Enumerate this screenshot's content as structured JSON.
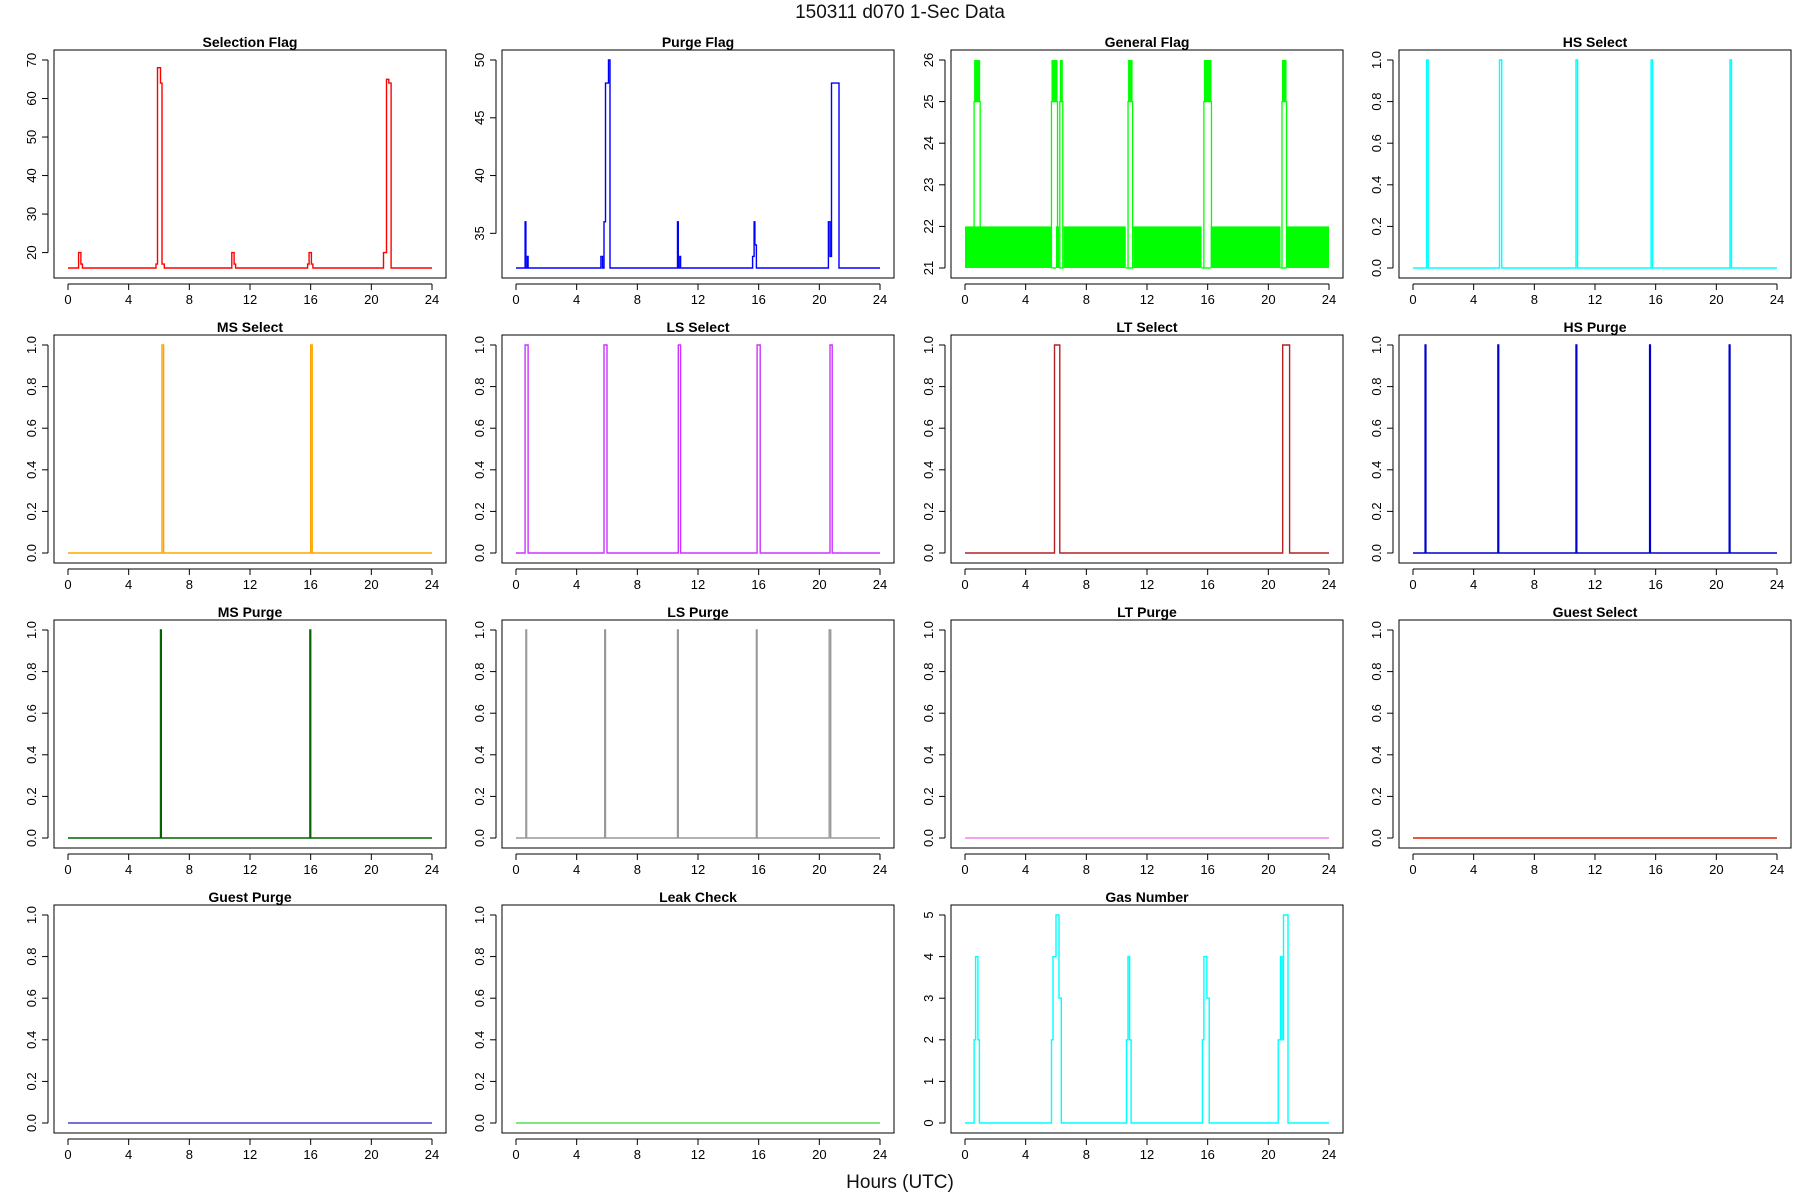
{
  "figure": {
    "title": "150311   d070   1-Sec Data",
    "xlabel": "Hours (UTC)"
  },
  "chart_data": [
    {
      "type": "line",
      "title": "Selection Flag",
      "color": "#ff0000",
      "xlim": [
        0,
        24
      ],
      "ylim": [
        16,
        70
      ],
      "xticks": [
        0,
        4,
        8,
        12,
        16,
        20,
        24
      ],
      "yticks": [
        20,
        30,
        40,
        50,
        60,
        70
      ],
      "series": [
        {
          "name": "Selection Flag",
          "x": [
            0,
            0.7,
            0.7,
            0.85,
            0.85,
            0.95,
            0.95,
            5.8,
            5.8,
            5.9,
            5.9,
            6.1,
            6.1,
            6.2,
            6.2,
            6.35,
            6.35,
            10.8,
            10.8,
            10.95,
            10.95,
            11.05,
            11.05,
            15.8,
            15.8,
            15.9,
            15.9,
            16.05,
            16.05,
            16.15,
            16.15,
            20.8,
            20.8,
            21.0,
            21.0,
            21.15,
            21.15,
            21.3,
            21.3,
            24
          ],
          "y": [
            16,
            16,
            20,
            20,
            17,
            17,
            16,
            16,
            17,
            17,
            68,
            68,
            64,
            64,
            17,
            17,
            16,
            16,
            20,
            20,
            17,
            17,
            16,
            16,
            17,
            17,
            20,
            20,
            17,
            17,
            16,
            16,
            20,
            20,
            65,
            65,
            64,
            64,
            16,
            16
          ]
        }
      ]
    },
    {
      "type": "line",
      "title": "Purge Flag",
      "color": "#0000ff",
      "xlim": [
        0,
        24
      ],
      "ylim": [
        32,
        50
      ],
      "xticks": [
        0,
        4,
        8,
        12,
        16,
        20,
        24
      ],
      "yticks": [
        35,
        40,
        45,
        50
      ],
      "series": [
        {
          "name": "Purge Flag",
          "x": [
            0,
            0.6,
            0.6,
            0.65,
            0.65,
            0.75,
            0.75,
            0.8,
            0.8,
            5.6,
            5.6,
            5.7,
            5.7,
            5.8,
            5.8,
            5.9,
            5.9,
            6.1,
            6.1,
            6.2,
            6.2,
            10.65,
            10.65,
            10.7,
            10.7,
            10.8,
            10.8,
            10.85,
            10.85,
            15.6,
            15.6,
            15.7,
            15.7,
            15.75,
            15.75,
            15.85,
            15.85,
            15.95,
            15.95,
            20.6,
            20.6,
            20.7,
            20.7,
            20.8,
            20.8,
            20.9,
            20.9,
            21.3,
            21.3,
            24
          ],
          "y": [
            32,
            32,
            36,
            36,
            32,
            32,
            33,
            33,
            32,
            32,
            33,
            33,
            32,
            32,
            36,
            36,
            48,
            48,
            50,
            50,
            32,
            32,
            36,
            36,
            32,
            32,
            33,
            33,
            32,
            32,
            33,
            33,
            36,
            36,
            34,
            34,
            32,
            32,
            32,
            32,
            36,
            36,
            33,
            33,
            48,
            48,
            48,
            48,
            32,
            32
          ]
        }
      ]
    },
    {
      "type": "line",
      "title": "General Flag",
      "color": "#00ff00",
      "xlim": [
        0,
        24
      ],
      "ylim": [
        21,
        26
      ],
      "xticks": [
        0,
        4,
        8,
        12,
        16,
        20,
        24
      ],
      "yticks": [
        21,
        22,
        23,
        24,
        25,
        26
      ],
      "bands": [
        {
          "from": 0,
          "to": 24,
          "low": 21,
          "high": 22
        }
      ],
      "gaps": [
        [
          5.7,
          6.0
        ],
        [
          6.2,
          6.5
        ],
        [
          10.6,
          11.1
        ],
        [
          15.6,
          16.2
        ],
        [
          20.8,
          21.2
        ]
      ],
      "spikes": [
        [
          0.6,
          1.0
        ],
        [
          5.7,
          6.1
        ],
        [
          6.25,
          6.45
        ],
        [
          10.75,
          11.05
        ],
        [
          15.75,
          16.25
        ],
        [
          20.9,
          21.2
        ]
      ],
      "series": [
        {
          "name": "General Flag",
          "x": [],
          "y": []
        }
      ]
    },
    {
      "type": "line",
      "title": "HS Select",
      "color": "#00ffff",
      "xlim": [
        0,
        24
      ],
      "ylim": [
        0,
        1
      ],
      "xticks": [
        0,
        4,
        8,
        12,
        16,
        20,
        24
      ],
      "yticks": [
        0.0,
        0.2,
        0.4,
        0.6,
        0.8,
        1.0
      ],
      "series": [
        {
          "name": "HS Select",
          "x": [
            0,
            0.9,
            0.9,
            1.0,
            1.0,
            5.7,
            5.7,
            5.85,
            5.85,
            10.75,
            10.75,
            10.85,
            10.85,
            15.7,
            15.7,
            15.8,
            15.8,
            20.9,
            20.9,
            21.0,
            21.0,
            24
          ],
          "y": [
            0,
            0,
            1,
            1,
            0,
            0,
            1,
            1,
            0,
            0,
            1,
            1,
            0,
            0,
            1,
            1,
            0,
            0,
            1,
            1,
            0,
            0
          ]
        }
      ]
    },
    {
      "type": "line",
      "title": "MS Select",
      "color": "#ffa500",
      "xlim": [
        0,
        24
      ],
      "ylim": [
        0,
        1
      ],
      "xticks": [
        0,
        4,
        8,
        12,
        16,
        20,
        24
      ],
      "yticks": [
        0.0,
        0.2,
        0.4,
        0.6,
        0.8,
        1.0
      ],
      "series": [
        {
          "name": "MS Select",
          "x": [
            0,
            6.2,
            6.2,
            6.3,
            6.3,
            16.0,
            16.0,
            16.1,
            16.1,
            24
          ],
          "y": [
            0,
            0,
            1,
            1,
            0,
            0,
            1,
            1,
            0,
            0
          ]
        }
      ]
    },
    {
      "type": "line",
      "title": "LS Select",
      "color": "#cc33ff",
      "xlim": [
        0,
        24
      ],
      "ylim": [
        0,
        1
      ],
      "xticks": [
        0,
        4,
        8,
        12,
        16,
        20,
        24
      ],
      "yticks": [
        0.0,
        0.2,
        0.4,
        0.6,
        0.8,
        1.0
      ],
      "series": [
        {
          "name": "LS Select",
          "x": [
            0,
            0.6,
            0.6,
            0.8,
            0.8,
            5.8,
            5.8,
            6.0,
            6.0,
            10.7,
            10.7,
            10.85,
            10.85,
            15.9,
            15.9,
            16.1,
            16.1,
            20.7,
            20.7,
            20.85,
            20.85,
            24
          ],
          "y": [
            0,
            0,
            1,
            1,
            0,
            0,
            1,
            1,
            0,
            0,
            1,
            1,
            0,
            0,
            1,
            1,
            0,
            0,
            1,
            1,
            0,
            0
          ]
        }
      ]
    },
    {
      "type": "line",
      "title": "LT Select",
      "color": "#b22222",
      "xlim": [
        0,
        24
      ],
      "ylim": [
        0,
        1
      ],
      "xticks": [
        0,
        4,
        8,
        12,
        16,
        20,
        24
      ],
      "yticks": [
        0.0,
        0.2,
        0.4,
        0.6,
        0.8,
        1.0
      ],
      "series": [
        {
          "name": "LT Select",
          "x": [
            0,
            5.9,
            5.9,
            6.25,
            6.25,
            20.95,
            20.95,
            21.4,
            21.4,
            24
          ],
          "y": [
            0,
            0,
            1,
            1,
            0,
            0,
            1,
            1,
            0,
            0
          ]
        }
      ]
    },
    {
      "type": "line",
      "title": "HS Purge",
      "color": "#0000cc",
      "xlim": [
        0,
        24
      ],
      "ylim": [
        0,
        1
      ],
      "xticks": [
        0,
        4,
        8,
        12,
        16,
        20,
        24
      ],
      "yticks": [
        0.0,
        0.2,
        0.4,
        0.6,
        0.8,
        1.0
      ],
      "series": [
        {
          "name": "HS Purge",
          "x": [
            0,
            0.8,
            0.8,
            0.85,
            0.85,
            5.6,
            5.6,
            5.65,
            5.65,
            10.75,
            10.75,
            10.8,
            10.8,
            15.6,
            15.6,
            15.65,
            15.65,
            20.85,
            20.85,
            20.9,
            20.9,
            24
          ],
          "y": [
            0,
            0,
            1,
            1,
            0,
            0,
            1,
            1,
            0,
            0,
            1,
            1,
            0,
            0,
            1,
            1,
            0,
            0,
            1,
            1,
            0,
            0
          ]
        }
      ]
    },
    {
      "type": "line",
      "title": "MS Purge",
      "color": "#006400",
      "xlim": [
        0,
        24
      ],
      "ylim": [
        0,
        1
      ],
      "xticks": [
        0,
        4,
        8,
        12,
        16,
        20,
        24
      ],
      "yticks": [
        0.0,
        0.2,
        0.4,
        0.6,
        0.8,
        1.0
      ],
      "series": [
        {
          "name": "MS Purge",
          "x": [
            0,
            6.1,
            6.1,
            6.15,
            6.15,
            15.95,
            15.95,
            16.0,
            16.0,
            24
          ],
          "y": [
            0,
            0,
            1,
            1,
            0,
            0,
            1,
            1,
            0,
            0
          ]
        }
      ]
    },
    {
      "type": "line",
      "title": "LS Purge",
      "color": "#999999",
      "xlim": [
        0,
        24
      ],
      "ylim": [
        0,
        1
      ],
      "xticks": [
        0,
        4,
        8,
        12,
        16,
        20,
        24
      ],
      "yticks": [
        0.0,
        0.2,
        0.4,
        0.6,
        0.8,
        1.0
      ],
      "series": [
        {
          "name": "LS Purge",
          "x": [
            0,
            0.65,
            0.65,
            0.7,
            0.7,
            5.85,
            5.85,
            5.9,
            5.9,
            10.65,
            10.65,
            10.7,
            10.7,
            15.85,
            15.85,
            15.9,
            15.9,
            20.65,
            20.65,
            20.75,
            20.75,
            24
          ],
          "y": [
            0,
            0,
            1,
            1,
            0,
            0,
            1,
            1,
            0,
            0,
            1,
            1,
            0,
            0,
            1,
            1,
            0,
            0,
            1,
            1,
            0,
            0
          ]
        }
      ]
    },
    {
      "type": "line",
      "title": "LT Purge",
      "color": "#ee82ee",
      "xlim": [
        0,
        24
      ],
      "ylim": [
        0,
        1
      ],
      "xticks": [
        0,
        4,
        8,
        12,
        16,
        20,
        24
      ],
      "yticks": [
        0.0,
        0.2,
        0.4,
        0.6,
        0.8,
        1.0
      ],
      "series": [
        {
          "name": "LT Purge",
          "x": [
            0,
            24
          ],
          "y": [
            0,
            0
          ]
        }
      ]
    },
    {
      "type": "line",
      "title": "Guest Select",
      "color": "#dd2200",
      "xlim": [
        0,
        24
      ],
      "ylim": [
        0,
        1
      ],
      "xticks": [
        0,
        4,
        8,
        12,
        16,
        20,
        24
      ],
      "yticks": [
        0.0,
        0.2,
        0.4,
        0.6,
        0.8,
        1.0
      ],
      "series": [
        {
          "name": "Guest Select",
          "x": [
            0,
            24
          ],
          "y": [
            0,
            0
          ]
        }
      ]
    },
    {
      "type": "line",
      "title": "Guest Purge",
      "color": "#4444cc",
      "xlim": [
        0,
        24
      ],
      "ylim": [
        0,
        1
      ],
      "xticks": [
        0,
        4,
        8,
        12,
        16,
        20,
        24
      ],
      "yticks": [
        0.0,
        0.2,
        0.4,
        0.6,
        0.8,
        1.0
      ],
      "series": [
        {
          "name": "Guest Purge",
          "x": [
            0,
            24
          ],
          "y": [
            0,
            0
          ]
        }
      ]
    },
    {
      "type": "line",
      "title": "Leak Check",
      "color": "#55dd55",
      "xlim": [
        0,
        24
      ],
      "ylim": [
        0,
        1
      ],
      "xticks": [
        0,
        4,
        8,
        12,
        16,
        20,
        24
      ],
      "yticks": [
        0.0,
        0.2,
        0.4,
        0.6,
        0.8,
        1.0
      ],
      "series": [
        {
          "name": "Leak Check",
          "x": [
            0,
            24
          ],
          "y": [
            0,
            0
          ]
        }
      ]
    },
    {
      "type": "line",
      "title": "Gas Number",
      "color": "#00ffff",
      "xlim": [
        0,
        24
      ],
      "ylim": [
        0,
        5
      ],
      "xticks": [
        0,
        4,
        8,
        12,
        16,
        20,
        24
      ],
      "yticks": [
        0,
        1,
        2,
        3,
        4,
        5
      ],
      "series": [
        {
          "name": "Gas Number",
          "x": [
            0,
            0.6,
            0.6,
            0.7,
            0.7,
            0.85,
            0.85,
            0.95,
            0.95,
            5.7,
            5.7,
            5.8,
            5.8,
            5.9,
            5.9,
            6.0,
            6.0,
            6.2,
            6.2,
            6.35,
            6.35,
            10.65,
            10.65,
            10.75,
            10.75,
            10.85,
            10.85,
            10.95,
            10.95,
            15.65,
            15.65,
            15.75,
            15.75,
            15.95,
            15.95,
            16.1,
            16.1,
            20.65,
            20.65,
            20.8,
            20.8,
            20.9,
            20.9,
            21.0,
            21.0,
            21.3,
            21.3,
            24
          ],
          "y": [
            0,
            0,
            2,
            2,
            4,
            4,
            2,
            2,
            0,
            0,
            2,
            2,
            4,
            4,
            4,
            4,
            5,
            5,
            3,
            3,
            0,
            0,
            2,
            2,
            4,
            4,
            2,
            2,
            0,
            0,
            2,
            2,
            4,
            4,
            3,
            3,
            0,
            0,
            2,
            2,
            4,
            4,
            2,
            2,
            5,
            5,
            0,
            0
          ]
        }
      ]
    }
  ]
}
